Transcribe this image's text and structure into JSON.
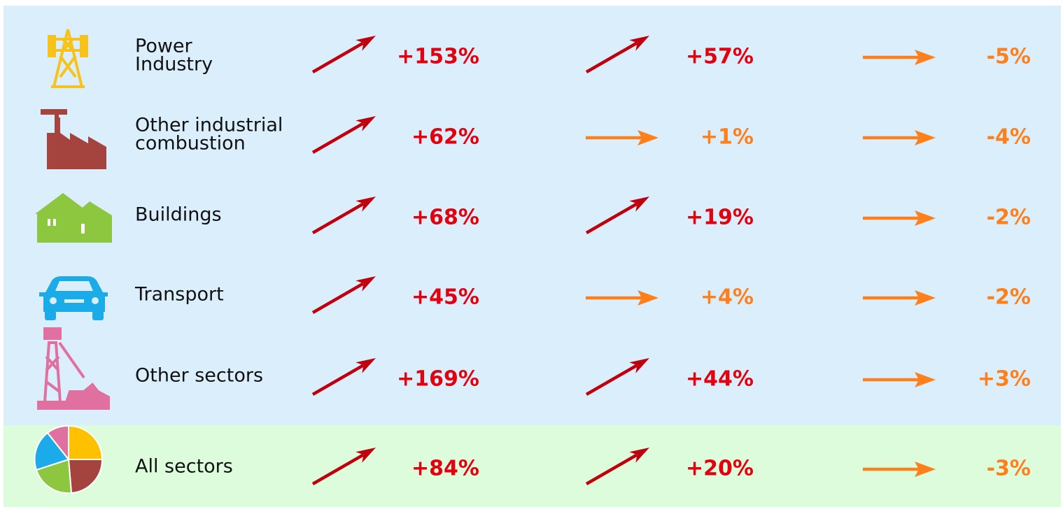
{
  "rows": [
    {
      "label": [
        "Power",
        "Industry"
      ],
      "values": [
        "+153%",
        "+57%",
        "-5%"
      ]
    },
    {
      "label": [
        "Other industrial",
        "combustion"
      ],
      "values": [
        "+62%",
        "+1%",
        "-4%"
      ]
    },
    {
      "label": [
        "Buildings"
      ],
      "values": [
        "+68%",
        "+19%",
        "-2%"
      ]
    },
    {
      "label": [
        "Transport"
      ],
      "values": [
        "+45%",
        "+4%",
        "-2%"
      ]
    },
    {
      "label": [
        "Other sectors"
      ],
      "values": [
        "+169%",
        "+44%",
        "+3%"
      ]
    },
    {
      "label": [
        "All sectors"
      ],
      "values": [
        "+84%",
        "+20%",
        "-3%"
      ]
    }
  ]
}
